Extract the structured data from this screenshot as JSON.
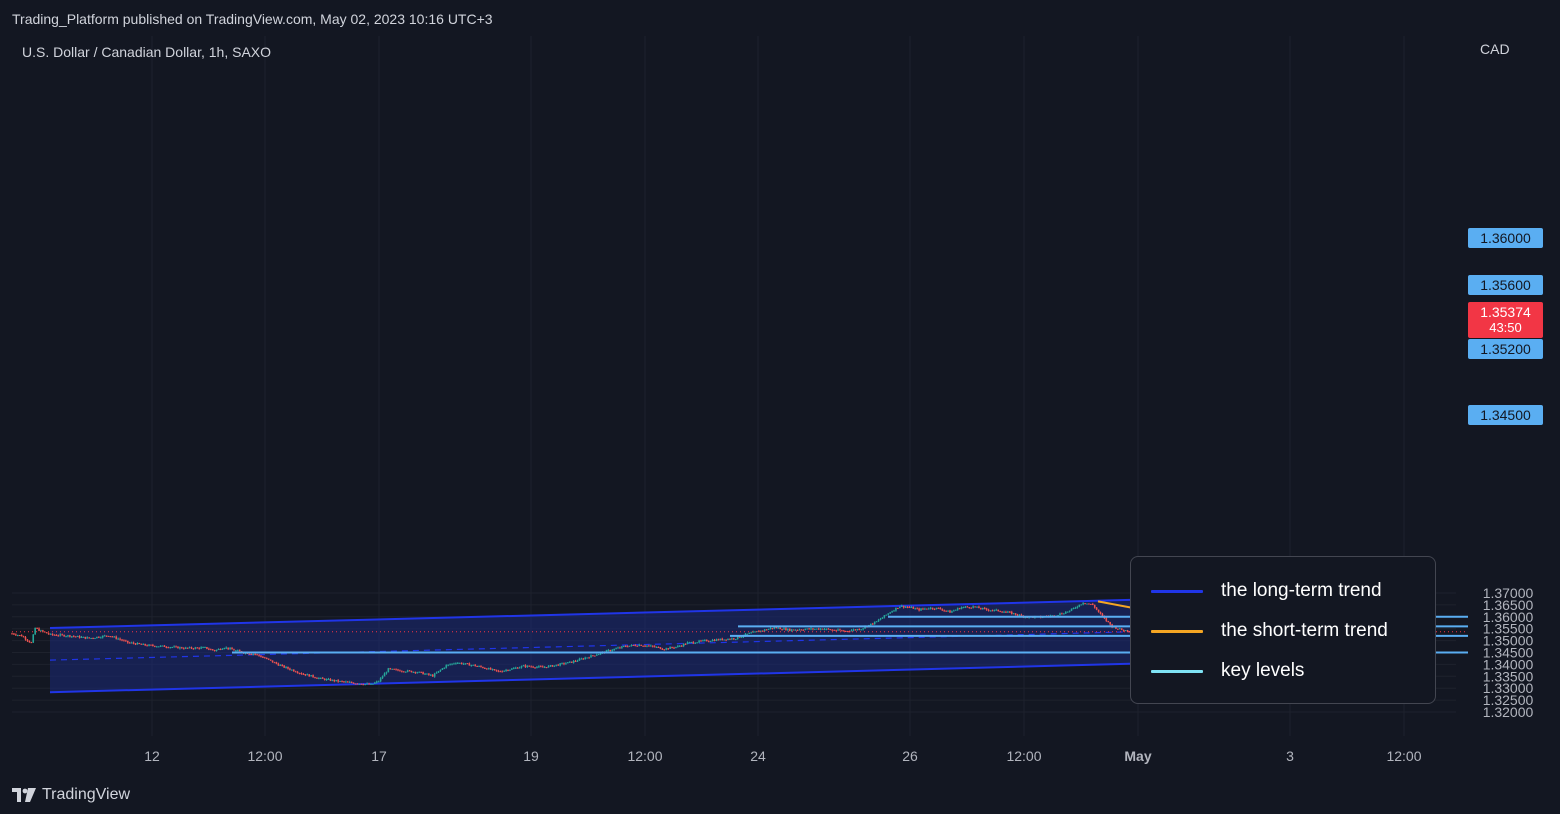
{
  "header": {
    "published_by": "Trading_Platform published on TradingView.com, May 02, 2023 10:16 UTC+3",
    "symbol": "U.S. Dollar / Canadian Dollar, 1h, SAXO",
    "currency": "CAD"
  },
  "footer": {
    "brand": "TradingView"
  },
  "legend": [
    {
      "label": "the long-term trend",
      "color": "#2035e8"
    },
    {
      "label": "the short-term trend",
      "color": "#f5a623"
    },
    {
      "label": "key levels",
      "color": "#7fe3f5"
    }
  ],
  "current_price": {
    "value": "1.35374",
    "countdown": "43:50",
    "color": "#f23645"
  },
  "key_level_tags": [
    "1.36000",
    "1.35600",
    "1.35200",
    "1.34500"
  ],
  "colors": {
    "up": "#26a69a",
    "down": "#ef5350",
    "channel": "#2035e8",
    "key_level": "#5aaef2",
    "short_trend": "#f5a623"
  },
  "chart_data": {
    "type": "candlestick",
    "ylim": [
      1.3185,
      1.3735
    ],
    "y_ticks": [
      "1.32000",
      "1.32500",
      "1.33000",
      "1.33500",
      "1.34000",
      "1.34500",
      "1.35000",
      "1.35500",
      "1.36000",
      "1.36500",
      "1.37000"
    ],
    "x_ticks": [
      "12",
      "12:00",
      "17",
      "19",
      "12:00",
      "24",
      "26",
      "12:00",
      "May",
      "3",
      "12:00"
    ],
    "close_path": [
      [
        0,
        1.353
      ],
      [
        5,
        1.352
      ],
      [
        10,
        1.349
      ],
      [
        12,
        1.3553
      ],
      [
        15,
        1.354
      ],
      [
        20,
        1.3525
      ],
      [
        30,
        1.352
      ],
      [
        40,
        1.351
      ],
      [
        50,
        1.3522
      ],
      [
        55,
        1.3508
      ],
      [
        60,
        1.3492
      ],
      [
        70,
        1.348
      ],
      [
        80,
        1.3475
      ],
      [
        90,
        1.3468
      ],
      [
        100,
        1.347
      ],
      [
        105,
        1.3458
      ],
      [
        110,
        1.3472
      ],
      [
        115,
        1.346
      ],
      [
        120,
        1.345
      ],
      [
        126,
        1.3443
      ],
      [
        130,
        1.343
      ],
      [
        140,
        1.3392
      ],
      [
        150,
        1.3362
      ],
      [
        160,
        1.334
      ],
      [
        170,
        1.3328
      ],
      [
        180,
        1.332
      ],
      [
        186,
        1.3315
      ],
      [
        190,
        1.333
      ],
      [
        195,
        1.338
      ],
      [
        200,
        1.3375
      ],
      [
        210,
        1.3368
      ],
      [
        218,
        1.3352
      ],
      [
        225,
        1.3395
      ],
      [
        230,
        1.3408
      ],
      [
        240,
        1.3395
      ],
      [
        245,
        1.3385
      ],
      [
        252,
        1.337
      ],
      [
        260,
        1.3383
      ],
      [
        265,
        1.3393
      ],
      [
        275,
        1.3388
      ],
      [
        280,
        1.3394
      ],
      [
        290,
        1.341
      ],
      [
        300,
        1.3435
      ],
      [
        310,
        1.346
      ],
      [
        318,
        1.3477
      ],
      [
        325,
        1.3482
      ],
      [
        330,
        1.3478
      ],
      [
        338,
        1.3465
      ],
      [
        345,
        1.3475
      ],
      [
        350,
        1.349
      ],
      [
        360,
        1.35
      ],
      [
        368,
        1.3505
      ],
      [
        375,
        1.351
      ],
      [
        382,
        1.353
      ],
      [
        390,
        1.3545
      ],
      [
        395,
        1.3555
      ],
      [
        403,
        1.3545
      ],
      [
        410,
        1.3548
      ],
      [
        420,
        1.355
      ],
      [
        425,
        1.3545
      ],
      [
        432,
        1.354
      ],
      [
        440,
        1.355
      ],
      [
        448,
        1.358
      ],
      [
        455,
        1.362
      ],
      [
        460,
        1.3645
      ],
      [
        465,
        1.364
      ],
      [
        470,
        1.363
      ],
      [
        475,
        1.3637
      ],
      [
        480,
        1.3635
      ],
      [
        486,
        1.362
      ],
      [
        492,
        1.364
      ],
      [
        498,
        1.3642
      ],
      [
        505,
        1.363
      ],
      [
        512,
        1.3625
      ],
      [
        518,
        1.3615
      ],
      [
        525,
        1.36
      ],
      [
        532,
        1.3598
      ],
      [
        540,
        1.3605
      ],
      [
        548,
        1.3625
      ],
      [
        555,
        1.366
      ],
      [
        560,
        1.365
      ],
      [
        565,
        1.36
      ],
      [
        570,
        1.356
      ],
      [
        575,
        1.3545
      ],
      [
        580,
        1.354
      ],
      [
        586,
        1.3555
      ],
      [
        592,
        1.3557
      ],
      [
        598,
        1.355
      ],
      [
        604,
        1.3572
      ],
      [
        610,
        1.3562
      ],
      [
        616,
        1.3545
      ],
      [
        622,
        1.3542
      ],
      [
        630,
        1.355
      ],
      [
        638,
        1.3547
      ],
      [
        640,
        1.3537
      ]
    ],
    "channel": {
      "upper": [
        [
          1.3553,
          1.3685
        ]
      ],
      "lower": [
        [
          1.3283,
          1.3417
        ]
      ],
      "mid": [
        [
          1.3418,
          1.3551
        ]
      ]
    },
    "key_levels": [
      1.36,
      1.356,
      1.352,
      1.345
    ],
    "short_term_trend": [
      [
        1.3665,
        1.353
      ]
    ],
    "projection": [
      1.3537,
      1.3465,
      1.3535
    ]
  }
}
